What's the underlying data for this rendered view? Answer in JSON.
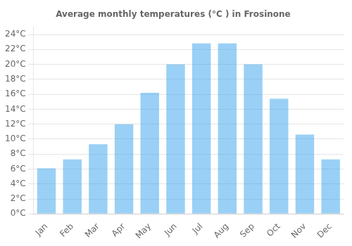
{
  "chart_data": {
    "type": "bar",
    "title": "Average monthly temperatures (°C ) in Frosinone",
    "categories": [
      "Jan",
      "Feb",
      "Mar",
      "Apr",
      "May",
      "Jun",
      "Jul",
      "Aug",
      "Sep",
      "Oct",
      "Nov",
      "Dec"
    ],
    "values": [
      6.1,
      7.3,
      9.3,
      12.0,
      16.2,
      20.0,
      22.8,
      22.8,
      20.0,
      15.4,
      10.6,
      7.3
    ],
    "ylim": [
      0,
      25
    ],
    "yticks": [
      {
        "value": 0,
        "label": "0°C"
      },
      {
        "value": 2,
        "label": "2°C"
      },
      {
        "value": 4,
        "label": "4°C"
      },
      {
        "value": 6,
        "label": "6°C"
      },
      {
        "value": 8,
        "label": "8°C"
      },
      {
        "value": 10,
        "label": "10°C"
      },
      {
        "value": 12,
        "label": "12°C"
      },
      {
        "value": 14,
        "label": "14°C"
      },
      {
        "value": 16,
        "label": "16°C"
      },
      {
        "value": 18,
        "label": "18°C"
      },
      {
        "value": 20,
        "label": "20°C"
      },
      {
        "value": 22,
        "label": "22°C"
      },
      {
        "value": 24,
        "label": "24°C"
      }
    ],
    "grid": true
  }
}
